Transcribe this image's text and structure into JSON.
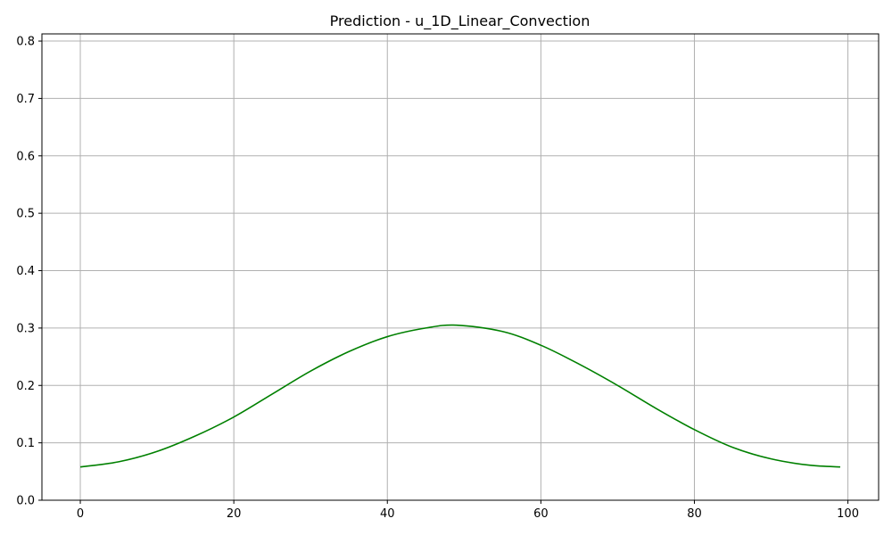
{
  "chart_data": {
    "type": "line",
    "title": "Prediction - u_1D_Linear_Convection",
    "xlabel": "",
    "ylabel": "",
    "xlim": [
      -5,
      104
    ],
    "ylim": [
      0.0,
      0.8125
    ],
    "x_ticks": [
      0,
      20,
      40,
      60,
      80,
      100
    ],
    "y_ticks": [
      0.0,
      0.1,
      0.2,
      0.3,
      0.4,
      0.5,
      0.6,
      0.7,
      0.8
    ],
    "x_tick_labels": [
      "0",
      "20",
      "40",
      "60",
      "80",
      "100"
    ],
    "y_tick_labels": [
      "0.0",
      "0.1",
      "0.2",
      "0.3",
      "0.4",
      "0.5",
      "0.6",
      "0.7",
      "0.8"
    ],
    "grid": true,
    "legend": "none",
    "series": [
      {
        "color": "#008000",
        "x": [
          0,
          5,
          10,
          15,
          20,
          25,
          30,
          35,
          40,
          45,
          49,
          55,
          60,
          65,
          70,
          75,
          80,
          85,
          90,
          95,
          99
        ],
        "y": [
          0.058,
          0.067,
          0.085,
          0.112,
          0.145,
          0.185,
          0.225,
          0.259,
          0.285,
          0.3,
          0.305,
          0.294,
          0.27,
          0.237,
          0.2,
          0.16,
          0.123,
          0.092,
          0.072,
          0.061,
          0.058
        ]
      }
    ]
  }
}
